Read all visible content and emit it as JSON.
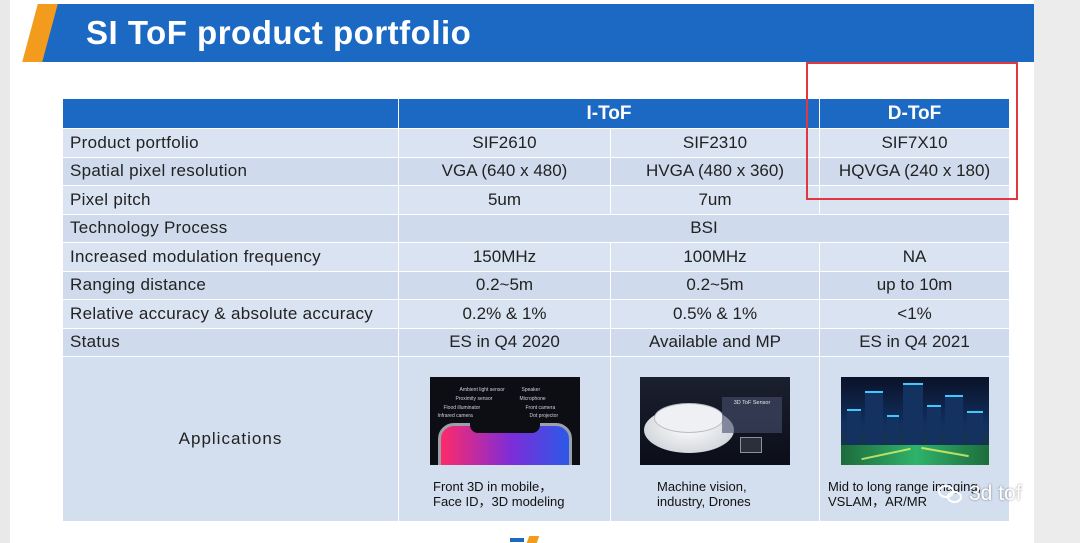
{
  "title": "SI ToF product portfolio",
  "groups": {
    "itof": "I-ToF",
    "dtof": "D-ToF"
  },
  "rows": [
    {
      "label": "Product portfolio",
      "c1": "SIF2610",
      "c2": "SIF2310",
      "c3": "SIF7X10"
    },
    {
      "label": "Spatial pixel resolution",
      "c1": "VGA (640 x 480)",
      "c2": "HVGA (480 x 360)",
      "c3": "HQVGA (240 x 180)"
    },
    {
      "label": "Pixel pitch",
      "c1": "5um",
      "c2": "7um",
      "c3": ""
    },
    {
      "label": "Technology Process",
      "merged": "BSI"
    },
    {
      "label": "Increased modulation frequency",
      "c1": "150MHz",
      "c2": "100MHz",
      "c3": "NA"
    },
    {
      "label": "Ranging distance",
      "c1": "0.2~5m",
      "c2": "0.2~5m",
      "c3": "up to 10m"
    },
    {
      "label": "Relative accuracy & absolute accuracy",
      "c1": "0.2% & 1%",
      "c2": "0.5% & 1%",
      "c3": "<1%"
    },
    {
      "label": "Status",
      "c1": "ES in Q4 2020",
      "c2": "Available and MP",
      "c3": "ES in Q4 2021"
    }
  ],
  "applications": {
    "label": "Applications",
    "items": [
      {
        "caption_line1": "Front 3D in mobile，",
        "caption_line2": "Face ID，3D modeling",
        "image_labels": [
          "Ambient light sensor",
          "Speaker",
          "Proximity sensor",
          "Microphone",
          "Flood illuminator",
          "Front camera",
          "Infrared camera",
          "Dot projector"
        ]
      },
      {
        "caption_line1": "Machine vision,",
        "caption_line2": "industry, Drones",
        "image_labels": [
          "3D ToF Sensor"
        ]
      },
      {
        "caption_line1": "Mid to long range imaging,",
        "caption_line2": "VSLAM，AR/MR"
      }
    ]
  },
  "watermark": "3d tof",
  "colors": {
    "header_blue": "#1c69c4",
    "accent_orange": "#f29b1d",
    "highlight_red": "#e0383e",
    "row_fill": "#dae3f1"
  }
}
